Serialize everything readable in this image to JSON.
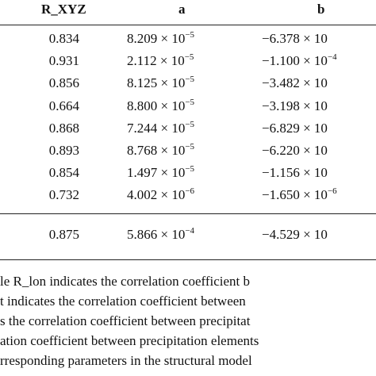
{
  "table": {
    "headers": {
      "rxyz": "R_XYZ",
      "a": "a",
      "b": "b"
    },
    "rows": [
      {
        "rxyz": "0.834",
        "a_coef": "8.209",
        "a_exp": "−5",
        "b_coef": "−6.378",
        "b_exp": ""
      },
      {
        "rxyz": "0.931",
        "a_coef": "2.112",
        "a_exp": "−5",
        "b_coef": "−1.100",
        "b_exp": "−4"
      },
      {
        "rxyz": "0.856",
        "a_coef": "8.125",
        "a_exp": "−5",
        "b_coef": "−3.482",
        "b_exp": ""
      },
      {
        "rxyz": "0.664",
        "a_coef": "8.800",
        "a_exp": "−5",
        "b_coef": "−3.198",
        "b_exp": ""
      },
      {
        "rxyz": "0.868",
        "a_coef": "7.244",
        "a_exp": "−5",
        "b_coef": "−6.829",
        "b_exp": ""
      },
      {
        "rxyz": "0.893",
        "a_coef": "8.768",
        "a_exp": "−5",
        "b_coef": "−6.220",
        "b_exp": ""
      },
      {
        "rxyz": "0.854",
        "a_coef": "1.497",
        "a_exp": "−5",
        "b_coef": "−1.156",
        "b_exp": ""
      },
      {
        "rxyz": "0.732",
        "a_coef": "4.002",
        "a_exp": "−6",
        "b_coef": "−1.650",
        "b_exp": "−6"
      }
    ],
    "summary_row": {
      "rxyz": "0.875",
      "a_coef": "5.866",
      "a_exp": "−4",
      "b_coef": "−4.529",
      "b_exp": ""
    },
    "times_ten": "× 10"
  },
  "footnote": {
    "lines": [
      "le R_lon indicates the correlation coefficient b",
      "t indicates the correlation coefficient between",
      "s the correlation coefficient between precipitat",
      "ation coefficient between precipitation elements",
      "rresponding parameters in the structural model"
    ]
  }
}
